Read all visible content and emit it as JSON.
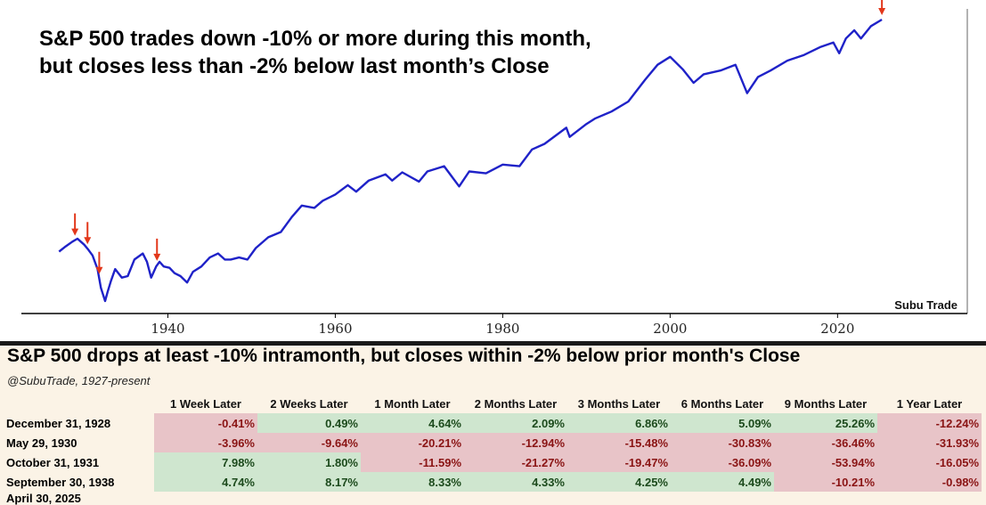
{
  "title_lines": [
    "S&P 500 trades down -10% or more during this month,",
    "but closes less than -2% below last month’s Close"
  ],
  "watermark": "Subu Trade",
  "colors": {
    "line": "#1f22c8",
    "arrow": "#e2371a",
    "negative_cell": "#e8c4c8",
    "positive_cell": "#cfe6cf"
  },
  "chart_data": {
    "type": "line",
    "title": "S&P 500 trades down -10% or more during this month, but closes less than -2% below last month’s Close",
    "xlabel": "",
    "ylabel": "",
    "y_scale": "log",
    "x_ticks": [
      1940,
      1960,
      1980,
      2000,
      2020
    ],
    "xlim": [
      1922.5,
      2035.5
    ],
    "y_axis_visible": false,
    "grid": false,
    "series": [
      {
        "values": [
          [
            1927.0,
            54
          ],
          [
            1927.8,
            60
          ],
          [
            1928.6,
            66
          ],
          [
            1929.2,
            70
          ],
          [
            1929.6,
            66
          ],
          [
            1930.0,
            62
          ],
          [
            1930.5,
            56
          ],
          [
            1931.0,
            50
          ],
          [
            1931.6,
            38
          ],
          [
            1932.0,
            26
          ],
          [
            1932.5,
            20
          ],
          [
            1932.8,
            24
          ],
          [
            1933.2,
            30
          ],
          [
            1933.7,
            38
          ],
          [
            1934.5,
            32
          ],
          [
            1935.2,
            33
          ],
          [
            1936.0,
            46
          ],
          [
            1937.0,
            52
          ],
          [
            1937.5,
            44
          ],
          [
            1938.0,
            32
          ],
          [
            1938.6,
            40
          ],
          [
            1939.0,
            44
          ],
          [
            1939.5,
            40
          ],
          [
            1940.2,
            39
          ],
          [
            1940.8,
            35
          ],
          [
            1941.5,
            33
          ],
          [
            1942.3,
            29
          ],
          [
            1943.0,
            36
          ],
          [
            1944.0,
            40
          ],
          [
            1945.0,
            48
          ],
          [
            1946.0,
            52
          ],
          [
            1946.8,
            46
          ],
          [
            1947.5,
            46
          ],
          [
            1948.5,
            48
          ],
          [
            1949.5,
            46
          ],
          [
            1950.5,
            58
          ],
          [
            1952.0,
            72
          ],
          [
            1953.5,
            80
          ],
          [
            1954.8,
            108
          ],
          [
            1956.0,
            136
          ],
          [
            1957.5,
            130
          ],
          [
            1958.5,
            150
          ],
          [
            1960.0,
            170
          ],
          [
            1961.5,
            205
          ],
          [
            1962.5,
            180
          ],
          [
            1964.0,
            225
          ],
          [
            1966.0,
            255
          ],
          [
            1966.8,
            225
          ],
          [
            1968.0,
            265
          ],
          [
            1970.0,
            220
          ],
          [
            1971.0,
            270
          ],
          [
            1973.0,
            300
          ],
          [
            1974.8,
            200
          ],
          [
            1976.0,
            270
          ],
          [
            1978.0,
            260
          ],
          [
            1980.0,
            310
          ],
          [
            1982.0,
            300
          ],
          [
            1983.5,
            420
          ],
          [
            1985.0,
            470
          ],
          [
            1987.6,
            650
          ],
          [
            1988.0,
            540
          ],
          [
            1990.0,
            700
          ],
          [
            1991.0,
            780
          ],
          [
            1993.0,
            900
          ],
          [
            1995.0,
            1100
          ],
          [
            1997.0,
            1700
          ],
          [
            1998.5,
            2300
          ],
          [
            2000.0,
            2700
          ],
          [
            2001.5,
            2100
          ],
          [
            2002.8,
            1600
          ],
          [
            2004.0,
            1900
          ],
          [
            2006.0,
            2050
          ],
          [
            2007.8,
            2300
          ],
          [
            2009.2,
            1300
          ],
          [
            2010.5,
            1800
          ],
          [
            2012.0,
            2050
          ],
          [
            2014.0,
            2500
          ],
          [
            2016.0,
            2800
          ],
          [
            2018.0,
            3300
          ],
          [
            2019.5,
            3600
          ],
          [
            2020.2,
            2900
          ],
          [
            2021.0,
            3900
          ],
          [
            2022.0,
            4600
          ],
          [
            2022.8,
            3900
          ],
          [
            2024.0,
            5000
          ],
          [
            2025.3,
            5700
          ]
        ]
      }
    ],
    "markers": [
      1928.9,
      1930.4,
      1931.8,
      1938.7,
      2025.3
    ]
  },
  "table": {
    "title": "S&P 500 drops at least -10% intramonth, but closes within -2% below prior month's Close",
    "subtitle": "@SubuTrade, 1927-present",
    "columns": [
      "1 Week Later",
      "2 Weeks Later",
      "1 Month Later",
      "2 Months Later",
      "3 Months Later",
      "6 Months Later",
      "9 Months Later",
      "1 Year Later"
    ],
    "rows": [
      {
        "date": "December 31, 1928",
        "values": [
          "-0.41%",
          "0.49%",
          "4.64%",
          "2.09%",
          "6.86%",
          "5.09%",
          "25.26%",
          "-12.24%"
        ]
      },
      {
        "date": "May 29, 1930",
        "values": [
          "-3.96%",
          "-9.64%",
          "-20.21%",
          "-12.94%",
          "-15.48%",
          "-30.83%",
          "-36.46%",
          "-31.93%"
        ]
      },
      {
        "date": "October 31, 1931",
        "values": [
          "7.98%",
          "1.80%",
          "-11.59%",
          "-21.27%",
          "-19.47%",
          "-36.09%",
          "-53.94%",
          "-16.05%"
        ]
      },
      {
        "date": "September 30, 1938",
        "values": [
          "4.74%",
          "8.17%",
          "8.33%",
          "4.33%",
          "4.25%",
          "4.49%",
          "-10.21%",
          "-0.98%"
        ]
      },
      {
        "date": "April 30, 2025",
        "values": []
      }
    ]
  }
}
